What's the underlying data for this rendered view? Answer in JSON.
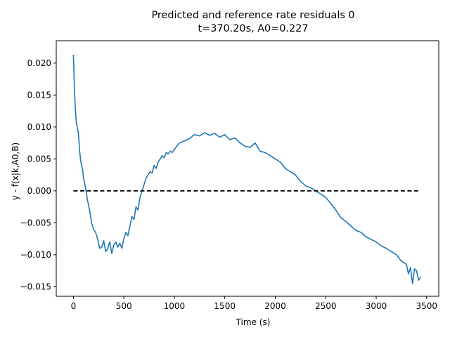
{
  "chart_data": {
    "type": "line",
    "title": "Predicted and reference rate residuals 0",
    "subtitle": "t=370.20s, A0=0.227",
    "xlabel": "Time (s)",
    "ylabel": "y - f(x|k,A0,B)",
    "xlim": [
      -170,
      3620
    ],
    "ylim": [
      -0.0165,
      0.0235
    ],
    "xticks": [
      0,
      500,
      1000,
      1500,
      2000,
      2500,
      3000,
      3500
    ],
    "xtick_labels": [
      "0",
      "500",
      "1000",
      "1500",
      "2000",
      "2500",
      "3000",
      "3500"
    ],
    "yticks": [
      -0.015,
      -0.01,
      -0.005,
      0.0,
      0.005,
      0.01,
      0.015,
      0.02
    ],
    "ytick_labels": [
      "−0.015",
      "−0.010",
      "−0.005",
      "0.000",
      "0.005",
      "0.010",
      "0.015",
      "0.020"
    ],
    "grid": false,
    "series": [
      {
        "color": "#1f77b4",
        "style": "solid",
        "x": [
          0,
          10,
          20,
          30,
          40,
          50,
          60,
          70,
          80,
          90,
          100,
          120,
          140,
          160,
          180,
          200,
          220,
          240,
          260,
          280,
          300,
          320,
          340,
          360,
          380,
          400,
          420,
          440,
          460,
          480,
          500,
          520,
          540,
          560,
          580,
          600,
          620,
          640,
          660,
          680,
          700,
          720,
          740,
          760,
          780,
          800,
          820,
          840,
          860,
          880,
          900,
          920,
          940,
          960,
          980,
          1000,
          1050,
          1100,
          1150,
          1200,
          1250,
          1300,
          1350,
          1400,
          1450,
          1500,
          1550,
          1600,
          1650,
          1700,
          1750,
          1800,
          1850,
          1900,
          1950,
          2000,
          2050,
          2100,
          2150,
          2200,
          2250,
          2300,
          2350,
          2400,
          2450,
          2500,
          2550,
          2600,
          2650,
          2700,
          2750,
          2800,
          2850,
          2900,
          2950,
          3000,
          3050,
          3100,
          3150,
          3200,
          3250,
          3300,
          3320,
          3340,
          3360,
          3380,
          3400,
          3420,
          3440
        ],
        "y": [
          0.0213,
          0.016,
          0.0125,
          0.0105,
          0.0098,
          0.009,
          0.0065,
          0.005,
          0.004,
          0.0035,
          0.002,
          0.0005,
          -0.0015,
          -0.003,
          -0.005,
          -0.006,
          -0.0065,
          -0.0075,
          -0.009,
          -0.0088,
          -0.0078,
          -0.0095,
          -0.009,
          -0.008,
          -0.0098,
          -0.0085,
          -0.008,
          -0.0088,
          -0.0082,
          -0.009,
          -0.0075,
          -0.0065,
          -0.007,
          -0.0055,
          -0.004,
          -0.0045,
          -0.0025,
          -0.003,
          -0.001,
          0.0,
          0.001,
          0.002,
          0.0025,
          0.003,
          0.0028,
          0.004,
          0.0035,
          0.0045,
          0.005,
          0.0055,
          0.0052,
          0.006,
          0.0058,
          0.0062,
          0.006,
          0.0065,
          0.0075,
          0.0078,
          0.0082,
          0.0088,
          0.0086,
          0.0091,
          0.0087,
          0.009,
          0.0084,
          0.0088,
          0.008,
          0.0083,
          0.0075,
          0.007,
          0.0068,
          0.0075,
          0.0062,
          0.006,
          0.0055,
          0.005,
          0.0045,
          0.0035,
          0.003,
          0.0025,
          0.0015,
          0.0008,
          0.0005,
          0.0,
          -0.0005,
          -0.001,
          -0.002,
          -0.003,
          -0.0042,
          -0.0048,
          -0.0055,
          -0.0062,
          -0.0065,
          -0.0072,
          -0.0076,
          -0.008,
          -0.0086,
          -0.009,
          -0.0095,
          -0.01,
          -0.011,
          -0.0115,
          -0.013,
          -0.012,
          -0.0145,
          -0.0122,
          -0.0125,
          -0.014,
          -0.0135
        ]
      },
      {
        "color": "#000000",
        "style": "dashed",
        "x": [
          0,
          3440
        ],
        "y": [
          0.0,
          0.0
        ]
      }
    ]
  }
}
